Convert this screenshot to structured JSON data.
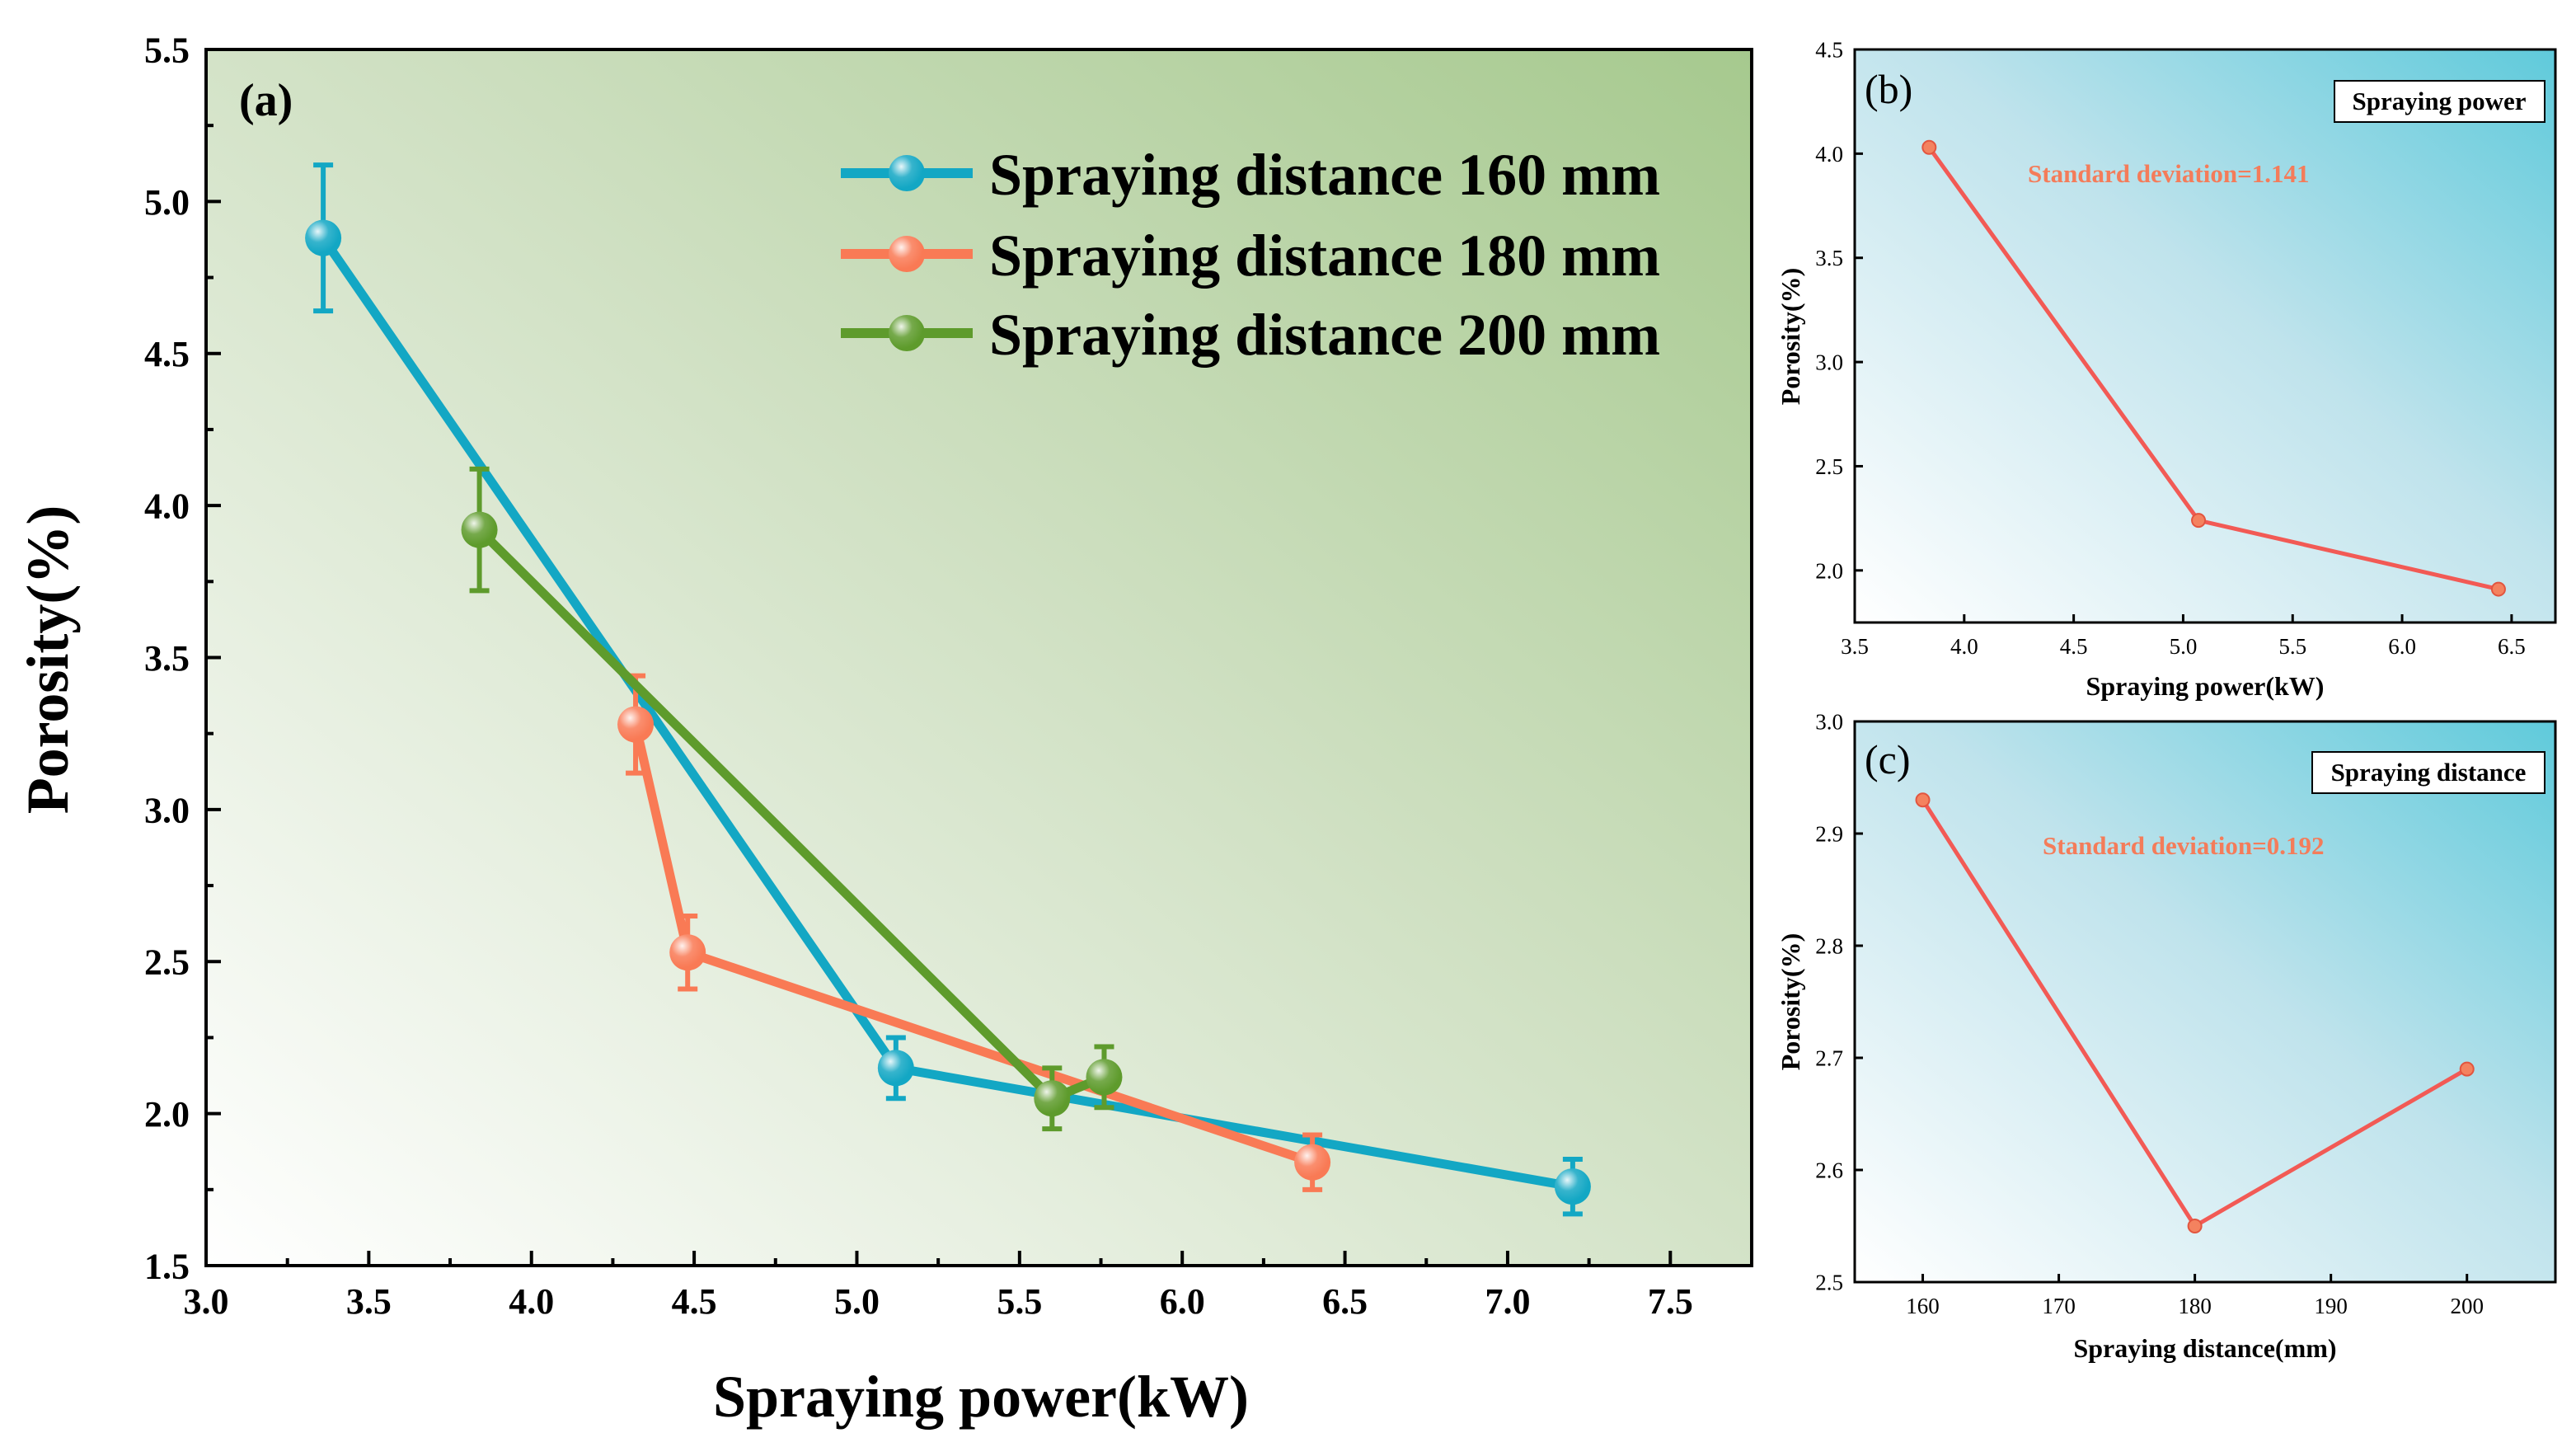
{
  "chart_data": [
    {
      "id": "a",
      "type": "line",
      "panel_label": "(a)",
      "xlabel": "Spraying power(kW)",
      "ylabel": "Porosity(%)",
      "xlim": [
        3.0,
        7.75
      ],
      "ylim": [
        1.5,
        5.5
      ],
      "xticks": [
        3.0,
        3.5,
        4.0,
        4.5,
        5.0,
        5.5,
        6.0,
        6.5,
        7.0,
        7.5
      ],
      "yticks": [
        1.5,
        2.0,
        2.5,
        3.0,
        3.5,
        4.0,
        4.5,
        5.0,
        5.5
      ],
      "legend_position": "top-right",
      "series": [
        {
          "name": "Spraying distance 160 mm",
          "color": "#13a7c4",
          "points": [
            {
              "x": 3.36,
              "y": 4.88,
              "err": 0.24
            },
            {
              "x": 5.12,
              "y": 2.15,
              "err": 0.1
            },
            {
              "x": 7.2,
              "y": 1.76,
              "err": 0.09
            }
          ]
        },
        {
          "name": "Spraying distance 180 mm",
          "color": "#f97a55",
          "points": [
            {
              "x": 4.32,
              "y": 3.28,
              "err": 0.16
            },
            {
              "x": 4.48,
              "y": 2.53,
              "err": 0.12
            },
            {
              "x": 6.4,
              "y": 1.84,
              "err": 0.09
            }
          ]
        },
        {
          "name": "Spraying distance 200 mm",
          "color": "#5e9b2c",
          "points": [
            {
              "x": 3.84,
              "y": 3.92,
              "err": 0.2
            },
            {
              "x": 5.6,
              "y": 2.05,
              "err": 0.1
            },
            {
              "x": 5.76,
              "y": 2.12,
              "err": 0.1
            }
          ]
        }
      ]
    },
    {
      "id": "b",
      "type": "line",
      "panel_label": "(b)",
      "box_title": "Spraying power",
      "annotation": "Standard deviation=1.141",
      "xlabel": "Spraying power(kW)",
      "ylabel": "Porosity(%)",
      "xlim": [
        3.5,
        6.7
      ],
      "ylim": [
        1.75,
        4.5
      ],
      "xticks": [
        3.5,
        4.0,
        4.5,
        5.0,
        5.5,
        6.0,
        6.5
      ],
      "yticks": [
        2.0,
        2.5,
        3.0,
        3.5,
        4.0,
        4.5
      ],
      "color": "#f25a55",
      "x": [
        3.84,
        5.07,
        6.44
      ],
      "y": [
        4.03,
        2.24,
        1.91
      ]
    },
    {
      "id": "c",
      "type": "line",
      "panel_label": "(c)",
      "box_title": "Spraying distance",
      "annotation": "Standard deviation=0.192",
      "xlabel": "Spraying distance(mm)",
      "ylabel": "Porosity(%)",
      "xlim": [
        155,
        206.5
      ],
      "ylim": [
        2.5,
        3.0
      ],
      "xticks": [
        160,
        170,
        180,
        190,
        200
      ],
      "yticks": [
        2.5,
        2.6,
        2.7,
        2.8,
        2.9,
        3.0
      ],
      "color": "#f25a55",
      "x": [
        160,
        180,
        200
      ],
      "y": [
        2.93,
        2.55,
        2.69
      ]
    }
  ]
}
